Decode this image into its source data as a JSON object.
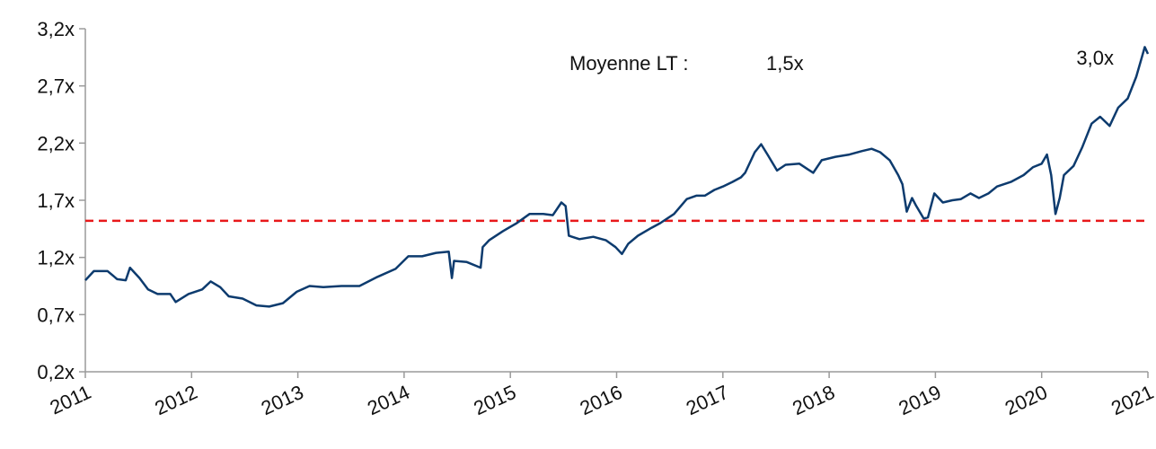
{
  "chart_data": {
    "type": "line",
    "annotations": [
      "3,0x"
    ],
    "reference": {
      "name": "Moyenne LT :",
      "value": 1.52,
      "value_label": "1,5x",
      "color": "#e8191b"
    },
    "xlim": [
      2011,
      2021
    ],
    "xticks": [
      2011,
      2012,
      2013,
      2014,
      2015,
      2016,
      2017,
      2018,
      2019,
      2020,
      2021
    ],
    "ylim": [
      0.2,
      3.2
    ],
    "yticks": [
      {
        "value": 0.2,
        "label": "0,2x"
      },
      {
        "value": 0.7,
        "label": "0,7x"
      },
      {
        "value": 1.2,
        "label": "1,2x"
      },
      {
        "value": 1.7,
        "label": "1,7x"
      },
      {
        "value": 2.2,
        "label": "2,2x"
      },
      {
        "value": 2.7,
        "label": "2,7x"
      },
      {
        "value": 3.2,
        "label": "3,2x"
      }
    ],
    "grid": false,
    "series": [
      {
        "color": "#0d3b6e",
        "x": [
          2011.0,
          2011.08,
          2011.21,
          2011.3,
          2011.38,
          2011.42,
          2011.51,
          2011.59,
          2011.68,
          2011.8,
          2011.85,
          2011.97,
          2012.1,
          2012.18,
          2012.27,
          2012.35,
          2012.48,
          2012.61,
          2012.73,
          2012.86,
          2012.99,
          2013.11,
          2013.24,
          2013.41,
          2013.58,
          2013.75,
          2013.92,
          2014.04,
          2014.17,
          2014.3,
          2014.42,
          2014.45,
          2014.47,
          2014.59,
          2014.72,
          2014.74,
          2014.8,
          2014.93,
          2015.06,
          2015.18,
          2015.31,
          2015.4,
          2015.48,
          2015.52,
          2015.55,
          2015.65,
          2015.78,
          2015.9,
          2015.99,
          2016.05,
          2016.11,
          2016.2,
          2016.33,
          2016.41,
          2016.54,
          2016.66,
          2016.75,
          2016.83,
          2016.92,
          2017.0,
          2017.09,
          2017.17,
          2017.21,
          2017.3,
          2017.36,
          2017.42,
          2017.51,
          2017.59,
          2017.72,
          2017.8,
          2017.85,
          2017.93,
          2018.06,
          2018.19,
          2018.31,
          2018.4,
          2018.48,
          2018.57,
          2018.65,
          2018.69,
          2018.73,
          2018.78,
          2018.82,
          2018.89,
          2018.93,
          2018.99,
          2019.07,
          2019.16,
          2019.24,
          2019.33,
          2019.41,
          2019.5,
          2019.58,
          2019.71,
          2019.83,
          2019.92,
          2020.0,
          2020.05,
          2020.09,
          2020.13,
          2020.17,
          2020.21,
          2020.3,
          2020.38,
          2020.47,
          2020.55,
          2020.64,
          2020.72,
          2020.81,
          2020.89,
          2020.97,
          2021.0
        ],
        "values": [
          1.0,
          1.08,
          1.08,
          1.01,
          1.0,
          1.11,
          1.02,
          0.92,
          0.88,
          0.88,
          0.81,
          0.88,
          0.92,
          0.99,
          0.94,
          0.86,
          0.84,
          0.78,
          0.77,
          0.8,
          0.9,
          0.95,
          0.94,
          0.95,
          0.95,
          1.03,
          1.1,
          1.21,
          1.21,
          1.24,
          1.25,
          1.02,
          1.17,
          1.16,
          1.11,
          1.29,
          1.35,
          1.43,
          1.5,
          1.58,
          1.58,
          1.57,
          1.68,
          1.65,
          1.39,
          1.36,
          1.38,
          1.35,
          1.29,
          1.23,
          1.32,
          1.39,
          1.46,
          1.5,
          1.58,
          1.71,
          1.74,
          1.74,
          1.79,
          1.82,
          1.86,
          1.9,
          1.94,
          2.12,
          2.19,
          2.1,
          1.96,
          2.01,
          2.02,
          1.97,
          1.94,
          2.05,
          2.08,
          2.1,
          2.13,
          2.15,
          2.12,
          2.05,
          1.92,
          1.84,
          1.6,
          1.72,
          1.65,
          1.54,
          1.55,
          1.76,
          1.68,
          1.7,
          1.71,
          1.76,
          1.72,
          1.76,
          1.82,
          1.86,
          1.92,
          1.99,
          2.02,
          2.1,
          1.92,
          1.58,
          1.72,
          1.92,
          2.0,
          2.16,
          2.37,
          2.43,
          2.35,
          2.51,
          2.59,
          2.78,
          3.04,
          2.98
        ]
      }
    ]
  }
}
